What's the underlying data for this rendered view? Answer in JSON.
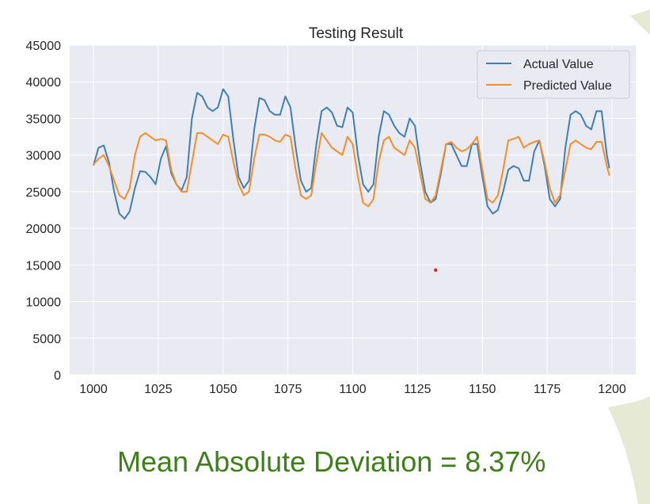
{
  "colors": {
    "plot_bg": "#eaeaf2",
    "grid": "#ffffff",
    "actual": "#3f7fb3",
    "predicted": "#f28e2b",
    "caption": "#3f7f1a",
    "accent_shape": "#e6e9d4",
    "marker": "#d62728"
  },
  "caption": {
    "text": "Mean Absolute Deviation = 8.37%"
  },
  "chart_data": {
    "type": "line",
    "title": "Testing Result",
    "xlabel": "",
    "ylabel": "",
    "xlim": [
      1000,
      1200
    ],
    "ylim": [
      0,
      45000
    ],
    "xticks": [
      1000,
      1025,
      1050,
      1075,
      1100,
      1125,
      1150,
      1175,
      1200
    ],
    "yticks": [
      0,
      5000,
      10000,
      15000,
      20000,
      25000,
      30000,
      35000,
      40000,
      45000
    ],
    "grid": true,
    "legend_position": "top-right",
    "series": [
      {
        "name": "Actual Value",
        "color": "#3f7fb3",
        "points": [
          [
            1000,
            28600
          ],
          [
            1002,
            31000
          ],
          [
            1004,
            31300
          ],
          [
            1006,
            29000
          ],
          [
            1008,
            25000
          ],
          [
            1010,
            22000
          ],
          [
            1012,
            21300
          ],
          [
            1014,
            22300
          ],
          [
            1016,
            25500
          ],
          [
            1018,
            27800
          ],
          [
            1020,
            27700
          ],
          [
            1022,
            27000
          ],
          [
            1024,
            26000
          ],
          [
            1026,
            29500
          ],
          [
            1028,
            31200
          ],
          [
            1030,
            27500
          ],
          [
            1032,
            26000
          ],
          [
            1034,
            25200
          ],
          [
            1036,
            27000
          ],
          [
            1038,
            35000
          ],
          [
            1040,
            38500
          ],
          [
            1042,
            38000
          ],
          [
            1044,
            36500
          ],
          [
            1046,
            36000
          ],
          [
            1048,
            36500
          ],
          [
            1050,
            39000
          ],
          [
            1052,
            38000
          ],
          [
            1054,
            32000
          ],
          [
            1056,
            27000
          ],
          [
            1058,
            25500
          ],
          [
            1060,
            26500
          ],
          [
            1062,
            33500
          ],
          [
            1064,
            37800
          ],
          [
            1066,
            37500
          ],
          [
            1068,
            36000
          ],
          [
            1070,
            35500
          ],
          [
            1072,
            35500
          ],
          [
            1074,
            38000
          ],
          [
            1076,
            36500
          ],
          [
            1078,
            31000
          ],
          [
            1080,
            26500
          ],
          [
            1082,
            25000
          ],
          [
            1084,
            25500
          ],
          [
            1086,
            31500
          ],
          [
            1088,
            36000
          ],
          [
            1090,
            36500
          ],
          [
            1092,
            35800
          ],
          [
            1094,
            34000
          ],
          [
            1096,
            33800
          ],
          [
            1098,
            36500
          ],
          [
            1100,
            35800
          ],
          [
            1102,
            30000
          ],
          [
            1104,
            26000
          ],
          [
            1106,
            25000
          ],
          [
            1108,
            26000
          ],
          [
            1110,
            32500
          ],
          [
            1112,
            36000
          ],
          [
            1114,
            35500
          ],
          [
            1116,
            34000
          ],
          [
            1118,
            33000
          ],
          [
            1120,
            32500
          ],
          [
            1122,
            35000
          ],
          [
            1124,
            34000
          ],
          [
            1126,
            29000
          ],
          [
            1128,
            25000
          ],
          [
            1130,
            23500
          ],
          [
            1132,
            24000
          ],
          [
            1134,
            27500
          ],
          [
            1136,
            31500
          ],
          [
            1138,
            31500
          ],
          [
            1140,
            30000
          ],
          [
            1142,
            28500
          ],
          [
            1144,
            28500
          ],
          [
            1146,
            31500
          ],
          [
            1148,
            31500
          ],
          [
            1150,
            27000
          ],
          [
            1152,
            23000
          ],
          [
            1154,
            22000
          ],
          [
            1156,
            22500
          ],
          [
            1158,
            25000
          ],
          [
            1160,
            28000
          ],
          [
            1162,
            28500
          ],
          [
            1164,
            28200
          ],
          [
            1166,
            26500
          ],
          [
            1168,
            26500
          ],
          [
            1170,
            30500
          ],
          [
            1172,
            32000
          ],
          [
            1174,
            28500
          ],
          [
            1176,
            24000
          ],
          [
            1178,
            23000
          ],
          [
            1180,
            24000
          ],
          [
            1182,
            31000
          ],
          [
            1184,
            35500
          ],
          [
            1186,
            36000
          ],
          [
            1188,
            35500
          ],
          [
            1190,
            34000
          ],
          [
            1192,
            33500
          ],
          [
            1194,
            36000
          ],
          [
            1196,
            36000
          ],
          [
            1198,
            30000
          ],
          [
            1199,
            28200
          ]
        ]
      },
      {
        "name": "Predicted Value",
        "color": "#f28e2b",
        "points": [
          [
            1000,
            28700
          ],
          [
            1002,
            29500
          ],
          [
            1004,
            30000
          ],
          [
            1006,
            28500
          ],
          [
            1008,
            26500
          ],
          [
            1010,
            24500
          ],
          [
            1012,
            24000
          ],
          [
            1014,
            25500
          ],
          [
            1016,
            30000
          ],
          [
            1018,
            32500
          ],
          [
            1020,
            33000
          ],
          [
            1022,
            32500
          ],
          [
            1024,
            32000
          ],
          [
            1026,
            32200
          ],
          [
            1028,
            32000
          ],
          [
            1030,
            28000
          ],
          [
            1032,
            26000
          ],
          [
            1034,
            25000
          ],
          [
            1036,
            25000
          ],
          [
            1038,
            29000
          ],
          [
            1040,
            33000
          ],
          [
            1042,
            33000
          ],
          [
            1044,
            32500
          ],
          [
            1046,
            32000
          ],
          [
            1048,
            31500
          ],
          [
            1050,
            32800
          ],
          [
            1052,
            32500
          ],
          [
            1054,
            29000
          ],
          [
            1056,
            26000
          ],
          [
            1058,
            24500
          ],
          [
            1060,
            25000
          ],
          [
            1062,
            29500
          ],
          [
            1064,
            32800
          ],
          [
            1066,
            32800
          ],
          [
            1068,
            32500
          ],
          [
            1070,
            32000
          ],
          [
            1072,
            31800
          ],
          [
            1074,
            32800
          ],
          [
            1076,
            32500
          ],
          [
            1078,
            28000
          ],
          [
            1080,
            24500
          ],
          [
            1082,
            24000
          ],
          [
            1084,
            24500
          ],
          [
            1086,
            29000
          ],
          [
            1088,
            33000
          ],
          [
            1090,
            32000
          ],
          [
            1092,
            31000
          ],
          [
            1094,
            30500
          ],
          [
            1096,
            30000
          ],
          [
            1098,
            32500
          ],
          [
            1100,
            31500
          ],
          [
            1102,
            27000
          ],
          [
            1104,
            23500
          ],
          [
            1106,
            23000
          ],
          [
            1108,
            24000
          ],
          [
            1110,
            29000
          ],
          [
            1112,
            32000
          ],
          [
            1114,
            32500
          ],
          [
            1116,
            31000
          ],
          [
            1118,
            30500
          ],
          [
            1120,
            30000
          ],
          [
            1122,
            32000
          ],
          [
            1124,
            31000
          ],
          [
            1126,
            27500
          ],
          [
            1128,
            24000
          ],
          [
            1130,
            23500
          ],
          [
            1132,
            24500
          ],
          [
            1134,
            28000
          ],
          [
            1136,
            31500
          ],
          [
            1138,
            31800
          ],
          [
            1140,
            31000
          ],
          [
            1142,
            30500
          ],
          [
            1144,
            30800
          ],
          [
            1146,
            31500
          ],
          [
            1148,
            32500
          ],
          [
            1150,
            28000
          ],
          [
            1152,
            24000
          ],
          [
            1154,
            23500
          ],
          [
            1156,
            24500
          ],
          [
            1158,
            28000
          ],
          [
            1160,
            32000
          ],
          [
            1162,
            32200
          ],
          [
            1164,
            32500
          ],
          [
            1166,
            31000
          ],
          [
            1168,
            31500
          ],
          [
            1170,
            31800
          ],
          [
            1172,
            32000
          ],
          [
            1174,
            29000
          ],
          [
            1176,
            25500
          ],
          [
            1178,
            23500
          ],
          [
            1180,
            24500
          ],
          [
            1182,
            28000
          ],
          [
            1184,
            31500
          ],
          [
            1186,
            32000
          ],
          [
            1188,
            31500
          ],
          [
            1190,
            31000
          ],
          [
            1192,
            30800
          ],
          [
            1194,
            31800
          ],
          [
            1196,
            31800
          ],
          [
            1198,
            28500
          ],
          [
            1199,
            27200
          ]
        ]
      }
    ]
  }
}
